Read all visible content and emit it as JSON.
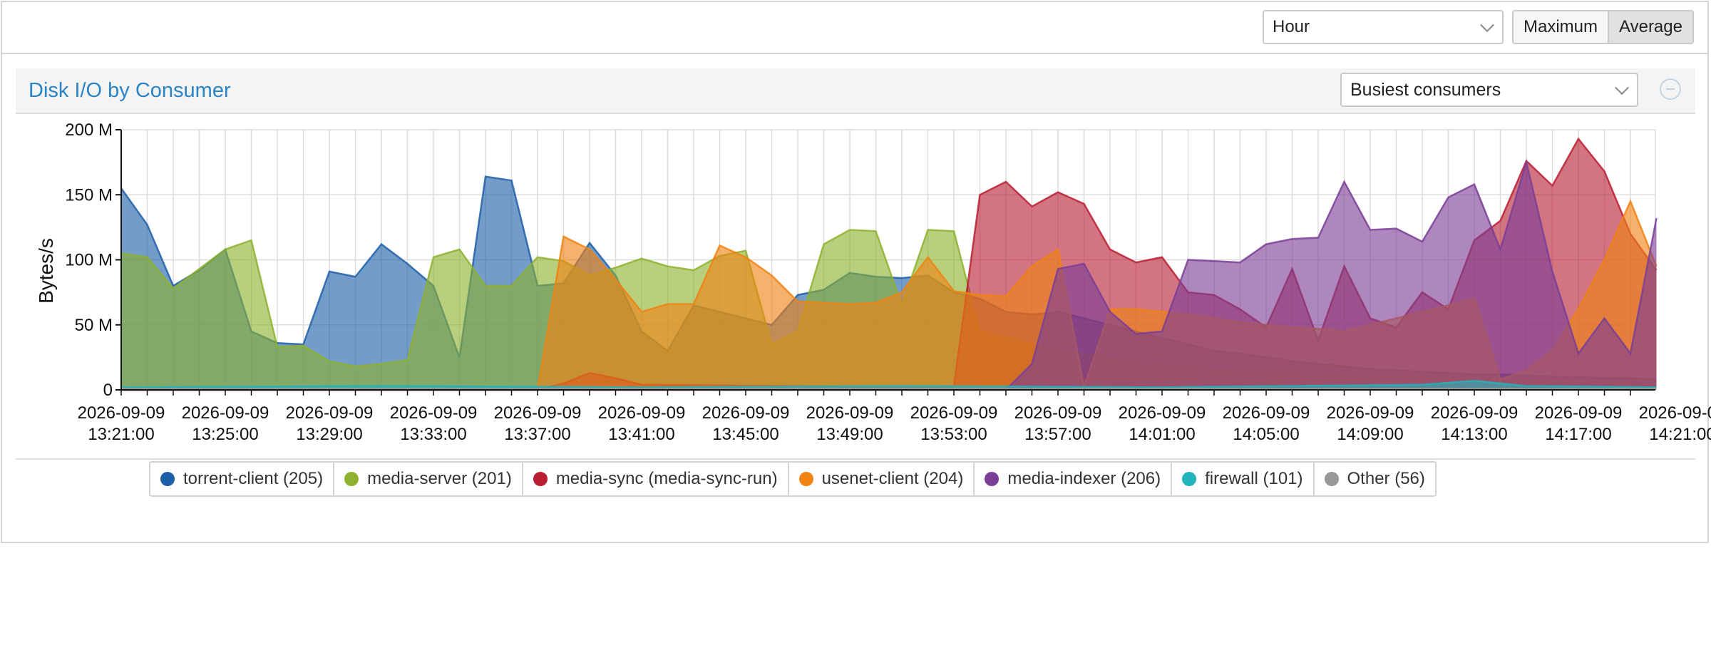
{
  "toolbar": {
    "timespan_value": "Hour",
    "buttons": [
      "Maximum",
      "Average"
    ],
    "active_button": "Average"
  },
  "panel": {
    "title": "Disk I/O by Consumer",
    "filter_value": "Busiest consumers"
  },
  "legend": [
    {
      "label": "torrent-client (205)",
      "color": "#1f5fa8"
    },
    {
      "label": "media-server (201)",
      "color": "#8db22e"
    },
    {
      "label": "media-sync (media-sync-run)",
      "color": "#b81f33"
    },
    {
      "label": "usenet-client (204)",
      "color": "#f08311"
    },
    {
      "label": "media-indexer (206)",
      "color": "#7a3e96"
    },
    {
      "label": "firewall (101)",
      "color": "#23b3ba"
    },
    {
      "label": "Other (56)",
      "color": "#999999"
    }
  ],
  "chart_data": {
    "type": "area",
    "ylabel": "Bytes/s",
    "xlabel": "",
    "ylim": [
      0,
      200000000
    ],
    "y_tick_labels": [
      "0",
      "50 M",
      "100 M",
      "150 M",
      "200 M"
    ],
    "y_ticks": [
      0,
      50000000,
      100000000,
      150000000,
      200000000
    ],
    "x_tick_labels": [
      [
        "2026-09-09",
        "13:21:00"
      ],
      [
        "2026-09-09",
        "13:25:00"
      ],
      [
        "2026-09-09",
        "13:29:00"
      ],
      [
        "2026-09-09",
        "13:33:00"
      ],
      [
        "2026-09-09",
        "13:37:00"
      ],
      [
        "2026-09-09",
        "13:41:00"
      ],
      [
        "2026-09-09",
        "13:45:00"
      ],
      [
        "2026-09-09",
        "13:49:00"
      ],
      [
        "2026-09-09",
        "13:53:00"
      ],
      [
        "2026-09-09",
        "13:57:00"
      ],
      [
        "2026-09-09",
        "14:01:00"
      ],
      [
        "2026-09-09",
        "14:05:00"
      ],
      [
        "2026-09-09",
        "14:09:00"
      ],
      [
        "2026-09-09",
        "14:13:00"
      ],
      [
        "2026-09-09",
        "14:17:00"
      ],
      [
        "2026-09-09",
        "14:21:00"
      ]
    ],
    "x_minutes_start": "13:21",
    "x_unit": "minutes",
    "grid": true,
    "series": [
      {
        "name": "torrent-client (205)",
        "color": "#1f5fa8",
        "points": [
          [
            0,
            155
          ],
          [
            1,
            127
          ],
          [
            2,
            80
          ],
          [
            3,
            92
          ],
          [
            4,
            108
          ],
          [
            5,
            45
          ],
          [
            6,
            36
          ],
          [
            7,
            35
          ],
          [
            8,
            91
          ],
          [
            9,
            87
          ],
          [
            10,
            112
          ],
          [
            11,
            97
          ],
          [
            12,
            80
          ],
          [
            13,
            25
          ],
          [
            14,
            164
          ],
          [
            15,
            161
          ],
          [
            16,
            80
          ],
          [
            17,
            82
          ],
          [
            18,
            113
          ],
          [
            19,
            88
          ],
          [
            20,
            45
          ],
          [
            21,
            30
          ],
          [
            22,
            65
          ],
          [
            23,
            60
          ],
          [
            24,
            55
          ],
          [
            25,
            50
          ],
          [
            26,
            73
          ],
          [
            27,
            77
          ],
          [
            28,
            90
          ],
          [
            29,
            87
          ],
          [
            30,
            86
          ],
          [
            31,
            88
          ],
          [
            32,
            75
          ],
          [
            33,
            70
          ],
          [
            34,
            60
          ],
          [
            35,
            58
          ],
          [
            36,
            60
          ],
          [
            37,
            55
          ],
          [
            38,
            50
          ],
          [
            39,
            45
          ],
          [
            40,
            40
          ],
          [
            41,
            35
          ],
          [
            42,
            30
          ],
          [
            43,
            28
          ],
          [
            44,
            25
          ],
          [
            45,
            22
          ],
          [
            46,
            20
          ],
          [
            47,
            18
          ],
          [
            48,
            16
          ],
          [
            49,
            15
          ],
          [
            50,
            14
          ],
          [
            51,
            13
          ],
          [
            52,
            12
          ],
          [
            53,
            12
          ],
          [
            54,
            11
          ],
          [
            55,
            10
          ],
          [
            56,
            10
          ],
          [
            57,
            9
          ],
          [
            58,
            9
          ],
          [
            59,
            8
          ]
        ]
      },
      {
        "name": "media-server (201)",
        "color": "#8db22e",
        "points": [
          [
            0,
            105
          ],
          [
            1,
            102
          ],
          [
            2,
            78
          ],
          [
            3,
            93
          ],
          [
            4,
            108
          ],
          [
            5,
            115
          ],
          [
            6,
            33
          ],
          [
            7,
            34
          ],
          [
            8,
            22
          ],
          [
            9,
            18
          ],
          [
            10,
            20
          ],
          [
            11,
            23
          ],
          [
            12,
            102
          ],
          [
            13,
            108
          ],
          [
            14,
            80
          ],
          [
            15,
            80
          ],
          [
            16,
            102
          ],
          [
            17,
            99
          ],
          [
            18,
            88
          ],
          [
            19,
            94
          ],
          [
            20,
            101
          ],
          [
            21,
            95
          ],
          [
            22,
            92
          ],
          [
            23,
            103
          ],
          [
            24,
            107
          ],
          [
            25,
            35
          ],
          [
            26,
            45
          ],
          [
            27,
            112
          ],
          [
            28,
            123
          ],
          [
            29,
            122
          ],
          [
            30,
            65
          ],
          [
            31,
            123
          ],
          [
            32,
            122
          ],
          [
            33,
            45
          ],
          [
            34,
            40
          ],
          [
            35,
            35
          ],
          [
            36,
            30
          ],
          [
            37,
            28
          ],
          [
            38,
            25
          ],
          [
            39,
            22
          ],
          [
            40,
            20
          ],
          [
            41,
            18
          ],
          [
            42,
            16
          ],
          [
            43,
            15
          ],
          [
            44,
            14
          ],
          [
            45,
            13
          ],
          [
            46,
            12
          ],
          [
            47,
            11
          ],
          [
            48,
            10
          ],
          [
            49,
            10
          ],
          [
            50,
            9
          ],
          [
            51,
            9
          ],
          [
            52,
            8
          ],
          [
            53,
            8
          ],
          [
            54,
            7
          ],
          [
            55,
            7
          ],
          [
            56,
            6
          ],
          [
            57,
            6
          ],
          [
            58,
            5
          ],
          [
            59,
            5
          ]
        ]
      },
      {
        "name": "media-sync (media-sync-run)",
        "color": "#b81f33",
        "points": [
          [
            0,
            0
          ],
          [
            16,
            0
          ],
          [
            17,
            5
          ],
          [
            18,
            13
          ],
          [
            19,
            9
          ],
          [
            20,
            4
          ],
          [
            31,
            2
          ],
          [
            32,
            3
          ],
          [
            33,
            150
          ],
          [
            34,
            160
          ],
          [
            35,
            141
          ],
          [
            36,
            152
          ],
          [
            37,
            143
          ],
          [
            38,
            108
          ],
          [
            39,
            98
          ],
          [
            40,
            102
          ],
          [
            41,
            75
          ],
          [
            42,
            73
          ],
          [
            43,
            62
          ],
          [
            44,
            48
          ],
          [
            45,
            93
          ],
          [
            46,
            38
          ],
          [
            47,
            95
          ],
          [
            48,
            55
          ],
          [
            49,
            48
          ],
          [
            50,
            75
          ],
          [
            51,
            62
          ],
          [
            52,
            115
          ],
          [
            53,
            130
          ],
          [
            54,
            176
          ],
          [
            55,
            157
          ],
          [
            56,
            193
          ],
          [
            57,
            168
          ],
          [
            58,
            120
          ],
          [
            59,
            92
          ]
        ]
      },
      {
        "name": "usenet-client (204)",
        "color": "#f08311",
        "points": [
          [
            0,
            0
          ],
          [
            16,
            0
          ],
          [
            17,
            118
          ],
          [
            18,
            108
          ],
          [
            19,
            85
          ],
          [
            20,
            60
          ],
          [
            21,
            66
          ],
          [
            22,
            66
          ],
          [
            23,
            111
          ],
          [
            24,
            102
          ],
          [
            25,
            88
          ],
          [
            26,
            68
          ],
          [
            27,
            67
          ],
          [
            28,
            66
          ],
          [
            29,
            67
          ],
          [
            30,
            75
          ],
          [
            31,
            102
          ],
          [
            32,
            76
          ],
          [
            33,
            73
          ],
          [
            34,
            72
          ],
          [
            35,
            95
          ],
          [
            36,
            108
          ],
          [
            37,
            2
          ],
          [
            38,
            62
          ],
          [
            39,
            62
          ],
          [
            40,
            60
          ],
          [
            41,
            58
          ],
          [
            42,
            55
          ],
          [
            43,
            52
          ],
          [
            44,
            50
          ],
          [
            45,
            48
          ],
          [
            46,
            47
          ],
          [
            47,
            45
          ],
          [
            48,
            50
          ],
          [
            49,
            55
          ],
          [
            50,
            60
          ],
          [
            51,
            65
          ],
          [
            52,
            70
          ],
          [
            53,
            8
          ],
          [
            54,
            15
          ],
          [
            55,
            30
          ],
          [
            56,
            62
          ],
          [
            57,
            100
          ],
          [
            58,
            145
          ],
          [
            59,
            95
          ]
        ]
      },
      {
        "name": "media-indexer (206)",
        "color": "#7a3e96",
        "points": [
          [
            0,
            0
          ],
          [
            34,
            0
          ],
          [
            35,
            20
          ],
          [
            36,
            93
          ],
          [
            37,
            97
          ],
          [
            38,
            60
          ],
          [
            39,
            43
          ],
          [
            40,
            45
          ],
          [
            41,
            100
          ],
          [
            42,
            99
          ],
          [
            43,
            98
          ],
          [
            44,
            112
          ],
          [
            45,
            116
          ],
          [
            46,
            117
          ],
          [
            47,
            160
          ],
          [
            48,
            123
          ],
          [
            49,
            124
          ],
          [
            50,
            114
          ],
          [
            51,
            148
          ],
          [
            52,
            158
          ],
          [
            53,
            108
          ],
          [
            54,
            175
          ],
          [
            55,
            91
          ],
          [
            56,
            28
          ],
          [
            57,
            55
          ],
          [
            58,
            28
          ],
          [
            59,
            132
          ]
        ]
      },
      {
        "name": "firewall (101)",
        "color": "#23b3ba",
        "points": [
          [
            0,
            2
          ],
          [
            10,
            3
          ],
          [
            20,
            2
          ],
          [
            30,
            3
          ],
          [
            40,
            2
          ],
          [
            50,
            4
          ],
          [
            52,
            7
          ],
          [
            54,
            3
          ],
          [
            59,
            2
          ]
        ]
      },
      {
        "name": "Other (56)",
        "color": "#999999",
        "points": [
          [
            0,
            1
          ],
          [
            59,
            1
          ]
        ]
      }
    ]
  }
}
